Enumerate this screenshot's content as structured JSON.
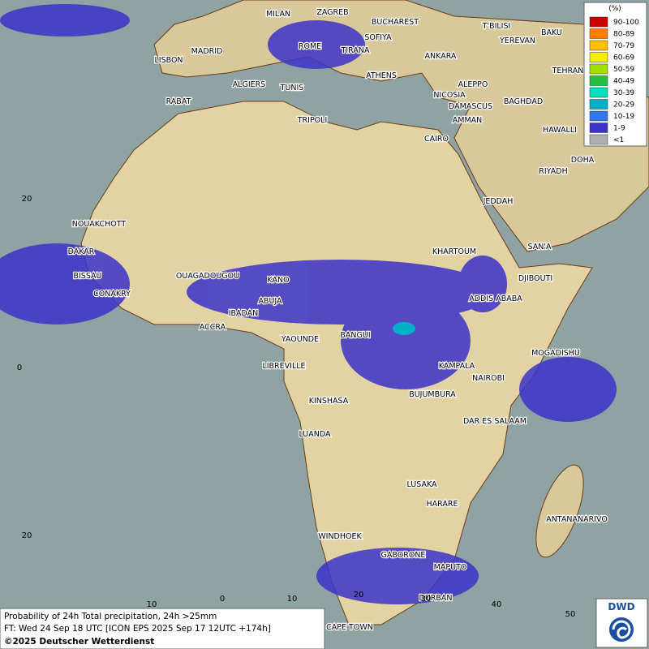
{
  "cities": [
    "MILAN",
    "ZAGREB",
    "BUCHAREST",
    "T'BILISI",
    "BAKU",
    "MADRID",
    "ROME",
    "SOFIYA",
    "YEREVAN",
    "LISBON",
    "TIRANA",
    "ANKARA",
    "TEHRAN",
    "ATHENS",
    "ALGIERS",
    "TUNIS",
    "ALEPPO",
    "RABAT",
    "NICOSIA",
    "BAGHDAD",
    "DAMASCUS",
    "TRIPOLI",
    "AMMAN",
    "HAWALLI",
    "CAIRO",
    "DOHA",
    "RIYADH",
    "JEDDAH",
    "NOUAKCHOTT",
    "SAN'A",
    "DAKAR",
    "KHARTOUM",
    "BISSAU",
    "OUAGADOUGOU",
    "DJIBOUTI",
    "KANO",
    "CONAKRY",
    "ABUJA",
    "ADDIS ABABA",
    "IBADAN",
    "ACCRA",
    "YAOUNDE",
    "BANGUI",
    "MOGADISHU",
    "LIBREVILLE",
    "KAMPALA",
    "NAIROBI",
    "KINSHASA",
    "BUJUMBURA",
    "DAR ES SALAAM",
    "LUANDA",
    "LUSAKA",
    "HARARE",
    "ANTANANARIVO",
    "WINDHOEK",
    "GABORONE",
    "MAPUTO",
    "DURBAN",
    "CAPE TOWN"
  ],
  "grid_labels": [
    "20",
    "0",
    "20",
    "10",
    "0",
    "10",
    "20",
    "30",
    "40",
    "50"
  ],
  "legend": {
    "title": "(%)",
    "items": [
      {
        "label": "90-100",
        "color": "#cc0000"
      },
      {
        "label": "80-89",
        "color": "#ff8000"
      },
      {
        "label": "70-79",
        "color": "#ffc000"
      },
      {
        "label": "60-69",
        "color": "#f0f000"
      },
      {
        "label": "50-59",
        "color": "#a0e000"
      },
      {
        "label": "40-49",
        "color": "#20c040"
      },
      {
        "label": "30-39",
        "color": "#00e0c0"
      },
      {
        "label": "20-29",
        "color": "#00b0c8"
      },
      {
        "label": "10-19",
        "color": "#3078f0"
      },
      {
        "label": "1-9",
        "color": "#3c32c8"
      },
      {
        "label": "<1",
        "color": "#b0b0b0"
      }
    ]
  },
  "footer": {
    "line1": "Probability of 24h Total precipitation, 24h >25mm",
    "line2": "FT: Wed 24 Sep 18 UTC [ICON EPS 2025 Sep 17 12UTC +174h]",
    "line3": "©2025 Deutscher Wetterdienst"
  },
  "logo": "DWD"
}
